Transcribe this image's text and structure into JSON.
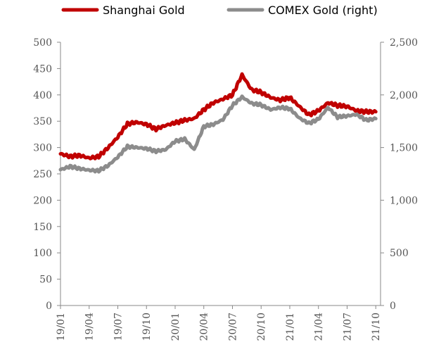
{
  "chart_data": {
    "type": "line",
    "legend_position": "top",
    "grid": false,
    "x_tick_labels": [
      "19/01",
      "19/04",
      "19/07",
      "19/10",
      "20/01",
      "20/04",
      "20/07",
      "20/10",
      "21/01",
      "21/04",
      "21/07",
      "21/10"
    ],
    "y_left": {
      "min": 0,
      "max": 500,
      "ticks": [
        0,
        50,
        100,
        150,
        200,
        250,
        300,
        350,
        400,
        450,
        500
      ],
      "tick_labels": [
        "0",
        "50",
        "100",
        "150",
        "200",
        "250",
        "300",
        "350",
        "400",
        "450",
        "500"
      ]
    },
    "y_right": {
      "min": 0,
      "max": 2500,
      "ticks": [
        0,
        500,
        1000,
        1500,
        2000,
        2500
      ],
      "tick_labels": [
        "0",
        "500",
        "1,000",
        "1,500",
        "2,000",
        "2,500"
      ]
    },
    "series": [
      {
        "name": "Shanghai Gold",
        "axis": "left",
        "color": "#c00000",
        "x": [
          "2019-01",
          "2019-02",
          "2019-03",
          "2019-04",
          "2019-05",
          "2019-06",
          "2019-07",
          "2019-08",
          "2019-09",
          "2019-10",
          "2019-11",
          "2019-12",
          "2020-01",
          "2020-02",
          "2020-03",
          "2020-04",
          "2020-05",
          "2020-06",
          "2020-07",
          "2020-08",
          "2020-09",
          "2020-10",
          "2020-11",
          "2020-12",
          "2021-01",
          "2021-02",
          "2021-03",
          "2021-04",
          "2021-05",
          "2021-06",
          "2021-07",
          "2021-08",
          "2021-09",
          "2021-10"
        ],
        "values": [
          288,
          283,
          285,
          280,
          283,
          300,
          320,
          345,
          348,
          344,
          335,
          342,
          347,
          352,
          355,
          372,
          385,
          392,
          400,
          438,
          410,
          405,
          395,
          390,
          395,
          378,
          362,
          370,
          385,
          380,
          378,
          370,
          368,
          368
        ]
      },
      {
        "name": "COMEX Gold (right)",
        "axis": "right",
        "color": "#8c8c8c",
        "x": [
          "2019-01",
          "2019-02",
          "2019-03",
          "2019-04",
          "2019-05",
          "2019-06",
          "2019-07",
          "2019-08",
          "2019-09",
          "2019-10",
          "2019-11",
          "2019-12",
          "2020-01",
          "2020-02",
          "2020-03",
          "2020-04",
          "2020-05",
          "2020-06",
          "2020-07",
          "2020-08",
          "2020-09",
          "2020-10",
          "2020-11",
          "2020-12",
          "2021-01",
          "2021-02",
          "2021-03",
          "2021-04",
          "2021-05",
          "2021-06",
          "2021-07",
          "2021-08",
          "2021-09",
          "2021-10"
        ],
        "values": [
          1290,
          1320,
          1300,
          1285,
          1280,
          1330,
          1410,
          1510,
          1500,
          1490,
          1465,
          1480,
          1560,
          1580,
          1480,
          1700,
          1720,
          1765,
          1900,
          1980,
          1920,
          1905,
          1860,
          1880,
          1870,
          1780,
          1730,
          1770,
          1880,
          1790,
          1800,
          1815,
          1760,
          1775
        ]
      }
    ]
  }
}
